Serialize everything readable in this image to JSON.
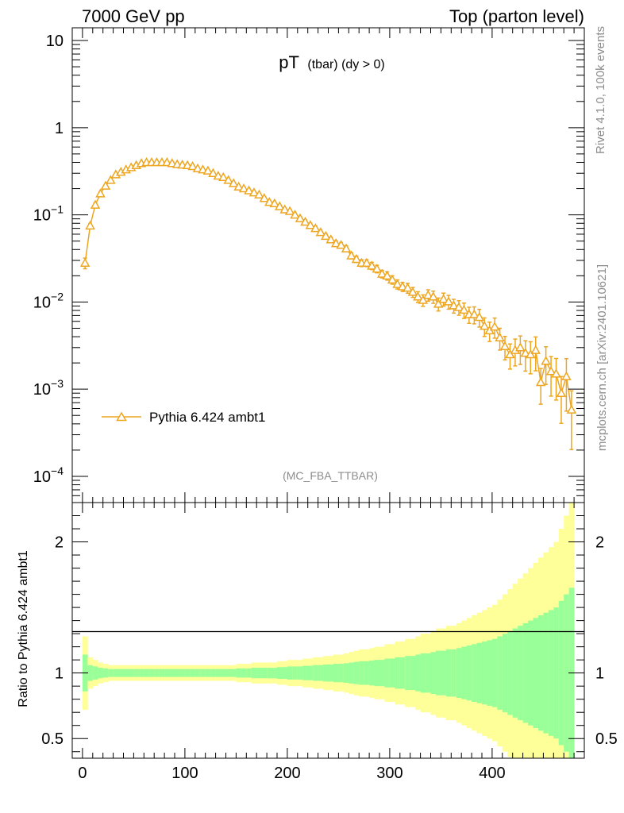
{
  "header": {
    "left": "7000 GeV pp",
    "right": "Top (parton level)"
  },
  "side": {
    "rivet": "Rivet 4.1.0,  100k events",
    "mcplots": "mcplots.cern.ch [arXiv:2401.10621]"
  },
  "plot": {
    "title_main": "pT",
    "title_sub": "(tbar) (dy > 0)",
    "analysis": "(MC_FBA_TTBAR)",
    "legend": "Pythia 6.424 ambt1",
    "ratio_ylabel": "Ratio to Pythia 6.424 ambt1"
  },
  "colors": {
    "series": "#eea621",
    "band_inner": "#99ff99",
    "band_outer": "#ffff99",
    "axis": "#000000",
    "muted": "#8c8c8c"
  },
  "chart_data": {
    "type": "line",
    "xlabel": "",
    "xlim": [
      -10,
      490
    ],
    "x_ticks": [
      "0",
      "100",
      "200",
      "300",
      "400"
    ],
    "main": {
      "yscale": "log",
      "ylim": [
        5e-05,
        14
      ],
      "y_ticks": [
        {
          "value": 10,
          "base": "10",
          "exp": ""
        },
        {
          "value": 1,
          "base": "1",
          "exp": ""
        },
        {
          "value": 0.1,
          "base": "10",
          "exp": "−1"
        },
        {
          "value": 0.01,
          "base": "10",
          "exp": "−2"
        },
        {
          "value": 0.001,
          "base": "10",
          "exp": "−3"
        },
        {
          "value": 0.0001,
          "base": "10",
          "exp": "−4"
        }
      ]
    },
    "ratio": {
      "ylim": [
        0.35,
        2.3
      ],
      "y_ticks": [
        {
          "value": 0.5,
          "label": "0.5"
        },
        {
          "value": 1,
          "label": "1"
        },
        {
          "value": 2,
          "label": "2"
        }
      ]
    },
    "series": [
      {
        "name": "Pythia 6.424 ambt1",
        "x": [
          2.5,
          7.5,
          12.5,
          17.5,
          22.5,
          27.5,
          32.5,
          37.5,
          42.5,
          47.5,
          52.5,
          57.5,
          62.5,
          67.5,
          72.5,
          77.5,
          82.5,
          87.5,
          92.5,
          97.5,
          102.5,
          107.5,
          112.5,
          117.5,
          122.5,
          127.5,
          132.5,
          137.5,
          142.5,
          147.5,
          152.5,
          157.5,
          162.5,
          167.5,
          172.5,
          177.5,
          182.5,
          187.5,
          192.5,
          197.5,
          202.5,
          207.5,
          212.5,
          217.5,
          222.5,
          227.5,
          232.5,
          237.5,
          242.5,
          247.5,
          252.5,
          257.5,
          262.5,
          267.5,
          272.5,
          277.5,
          282.5,
          287.5,
          292.5,
          297.5,
          302.5,
          307.5,
          312.5,
          317.5,
          322.5,
          327.5,
          332.5,
          337.5,
          342.5,
          347.5,
          352.5,
          357.5,
          362.5,
          367.5,
          372.5,
          377.5,
          382.5,
          387.5,
          392.5,
          397.5,
          402.5,
          407.5,
          412.5,
          417.5,
          422.5,
          427.5,
          432.5,
          437.5,
          442.5,
          447.5,
          452.5,
          457.5,
          462.5,
          467.5,
          472.5,
          477.5
        ],
        "y": [
          0.028,
          0.075,
          0.13,
          0.175,
          0.215,
          0.25,
          0.29,
          0.31,
          0.33,
          0.35,
          0.37,
          0.39,
          0.4,
          0.4,
          0.4,
          0.4,
          0.4,
          0.39,
          0.38,
          0.375,
          0.37,
          0.36,
          0.34,
          0.33,
          0.32,
          0.3,
          0.28,
          0.27,
          0.25,
          0.23,
          0.21,
          0.2,
          0.19,
          0.18,
          0.17,
          0.155,
          0.14,
          0.135,
          0.125,
          0.115,
          0.11,
          0.1,
          0.091,
          0.083,
          0.076,
          0.07,
          0.063,
          0.057,
          0.052,
          0.047,
          0.045,
          0.041,
          0.034,
          0.031,
          0.028,
          0.028,
          0.026,
          0.024,
          0.021,
          0.02,
          0.018,
          0.016,
          0.015,
          0.0145,
          0.013,
          0.0115,
          0.0105,
          0.012,
          0.0115,
          0.0095,
          0.0108,
          0.0101,
          0.0091,
          0.0087,
          0.0081,
          0.0072,
          0.0072,
          0.0067,
          0.0053,
          0.0047,
          0.0052,
          0.0039,
          0.0031,
          0.0025,
          0.0028,
          0.003,
          0.0026,
          0.0025,
          0.0028,
          0.0012,
          0.0021,
          0.0016,
          0.0015,
          0.0009,
          0.0014,
          0.00058
        ],
        "err_rel": [
          0.14,
          0.06,
          0.05,
          0.04,
          0.035,
          0.03,
          0.03,
          0.03,
          0.03,
          0.03,
          0.03,
          0.03,
          0.03,
          0.03,
          0.03,
          0.03,
          0.03,
          0.03,
          0.03,
          0.03,
          0.03,
          0.03,
          0.03,
          0.03,
          0.03,
          0.03,
          0.03,
          0.03,
          0.03,
          0.03,
          0.035,
          0.035,
          0.035,
          0.04,
          0.04,
          0.04,
          0.04,
          0.04,
          0.045,
          0.045,
          0.05,
          0.05,
          0.05,
          0.055,
          0.055,
          0.06,
          0.06,
          0.065,
          0.065,
          0.07,
          0.07,
          0.075,
          0.08,
          0.085,
          0.09,
          0.09,
          0.095,
          0.1,
          0.1,
          0.11,
          0.11,
          0.12,
          0.12,
          0.13,
          0.13,
          0.14,
          0.15,
          0.15,
          0.16,
          0.17,
          0.17,
          0.18,
          0.18,
          0.19,
          0.2,
          0.21,
          0.22,
          0.23,
          0.24,
          0.25,
          0.26,
          0.28,
          0.3,
          0.32,
          0.34,
          0.36,
          0.38,
          0.4,
          0.42,
          0.44,
          0.46,
          0.48,
          0.5,
          0.55,
          0.6,
          0.65
        ]
      }
    ]
  }
}
